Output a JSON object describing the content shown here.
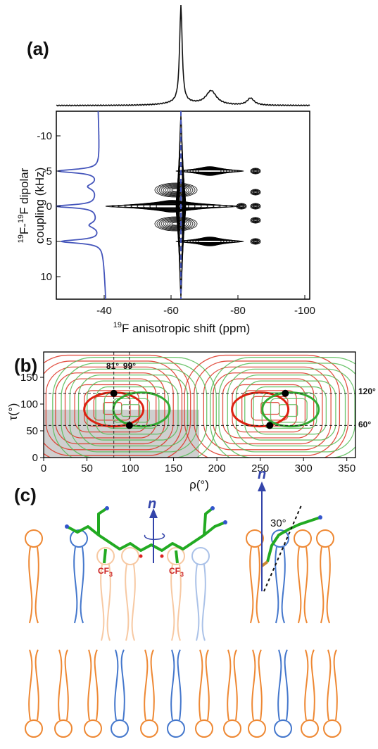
{
  "panel_a": {
    "label": "(a)",
    "y_axis_label_line1": [
      "19",
      "F-",
      "19",
      "F dipolar"
    ],
    "y_axis_label_line2": "coupling (kHz)",
    "y_ticks": [
      "-10",
      "-5",
      "0",
      "5",
      "10"
    ],
    "x_ticks": [
      "-40",
      "-60",
      "-80",
      "-100"
    ],
    "x_axis_label": [
      "19",
      "F anisotropic shift (ppm)"
    ]
  },
  "panel_b": {
    "label": "(b)",
    "y_axis_label": "τ(°)",
    "x_axis_label": "ρ(°)",
    "y_ticks": [
      "0",
      "50",
      "100",
      "150"
    ],
    "x_ticks": [
      "0",
      "50",
      "100",
      "150",
      "200",
      "250",
      "300",
      "350"
    ],
    "top_markers": [
      "81°",
      "99°"
    ],
    "right_markers": [
      "120°",
      "60°"
    ]
  },
  "panel_c": {
    "label": "(c)",
    "normal_left": "n",
    "normal_right": "n",
    "group_labels": [
      "CF",
      "3",
      "CF",
      "3"
    ],
    "tilt_angle": "30°"
  }
}
